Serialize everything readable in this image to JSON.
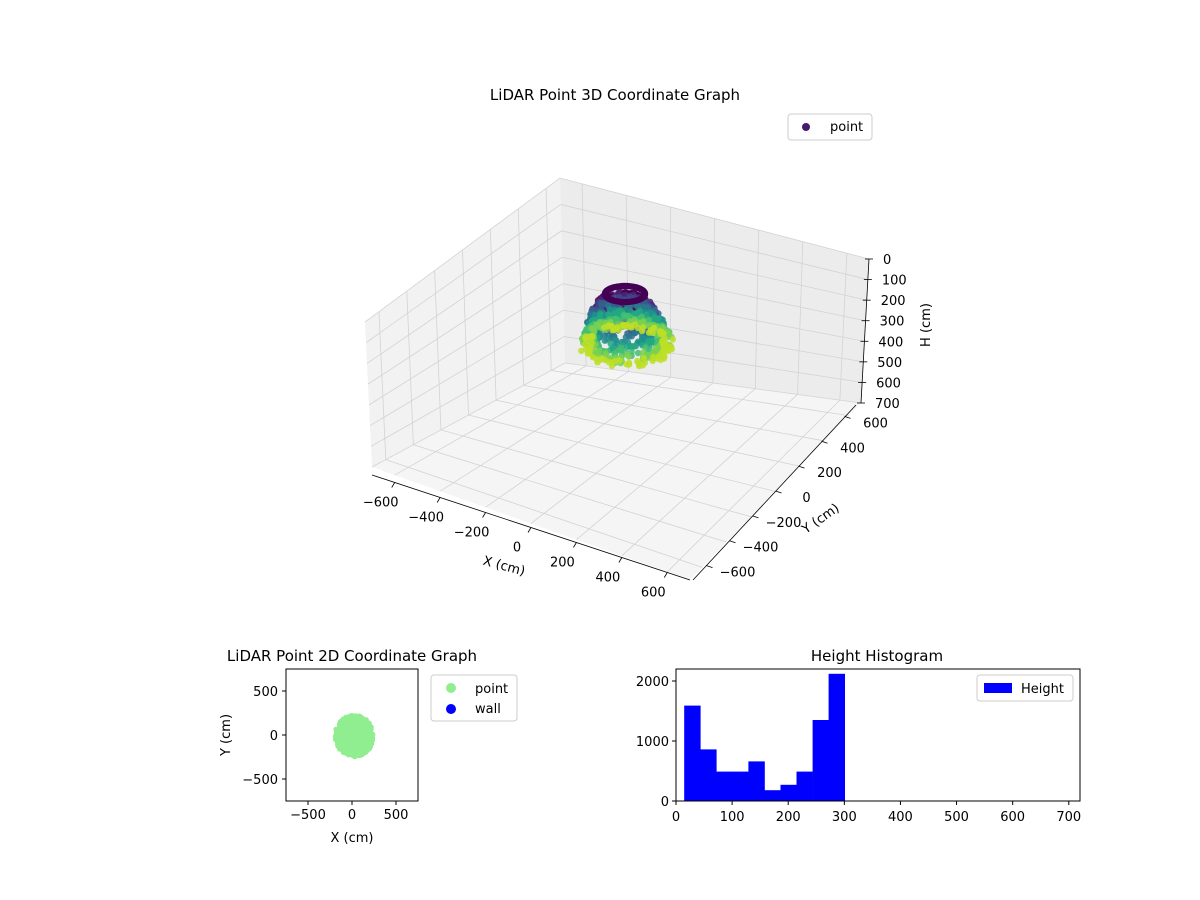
{
  "chart_data": [
    {
      "type": "scatter3d",
      "title": "LiDAR Point 3D Coordinate Graph",
      "xlabel": "X (cm)",
      "ylabel": "Y (cm)",
      "zlabel": "H (cm)",
      "xlim": [
        -700,
        700
      ],
      "ylim": [
        -700,
        700
      ],
      "zlim": [
        0,
        700
      ],
      "z_inverted": true,
      "xticks": [
        "−600",
        "−400",
        "−200",
        "0",
        "200",
        "400",
        "600"
      ],
      "yticks": [
        "−600",
        "−400",
        "−200",
        "0",
        "200",
        "400",
        "600"
      ],
      "zticks": [
        "0",
        "100",
        "200",
        "300",
        "400",
        "500",
        "600",
        "700"
      ],
      "colormap": "viridis",
      "grid": true,
      "legend": {
        "placement": "top-right",
        "entries": [
          {
            "label": "point",
            "color": "#481a6c"
          }
        ]
      },
      "point_cloud": {
        "description_note": "",
        "x_range": [
          -200,
          250
        ],
        "y_range": [
          -250,
          230
        ],
        "h_range": [
          0,
          300
        ],
        "top_ring_h": 0
      }
    },
    {
      "type": "scatter",
      "title": "LiDAR Point 2D Coordinate Graph",
      "xlabel": "X (cm)",
      "ylabel": "Y (cm)",
      "xlim": [
        -750,
        750
      ],
      "ylim": [
        -750,
        750
      ],
      "xticks": [
        "−500",
        "0",
        "500"
      ],
      "yticks": [
        "−500",
        "0",
        "500"
      ],
      "legend": {
        "placement": "outside-right",
        "entries": [
          {
            "label": "point",
            "color": "#90ee90"
          },
          {
            "label": "wall",
            "color": "#0000ff"
          }
        ]
      },
      "series": [
        {
          "name": "point",
          "color": "#90ee90",
          "x_range": [
            -200,
            250
          ],
          "y_range": [
            -250,
            230
          ]
        },
        {
          "name": "wall",
          "color": "#0000ff",
          "values": []
        }
      ]
    },
    {
      "type": "bar",
      "title": "Height Histogram",
      "xlim": [
        0,
        720
      ],
      "ylim": [
        0,
        2200
      ],
      "xticks": [
        "0",
        "100",
        "200",
        "300",
        "400",
        "500",
        "600",
        "700"
      ],
      "yticks": [
        "0",
        "1000",
        "2000"
      ],
      "legend": {
        "placement": "top-right",
        "entries": [
          {
            "label": "Height",
            "color": "#0000ff"
          }
        ]
      },
      "series": [
        {
          "name": "Height",
          "color": "#0000ff",
          "bin_edges": [
            14.6,
            43.2,
            71.8,
            100.4,
            129.0,
            157.6,
            186.2,
            214.8,
            243.4,
            272.0,
            300.6
          ],
          "values": [
            1590,
            860,
            490,
            490,
            660,
            180,
            270,
            490,
            1350,
            2120
          ]
        }
      ]
    }
  ]
}
